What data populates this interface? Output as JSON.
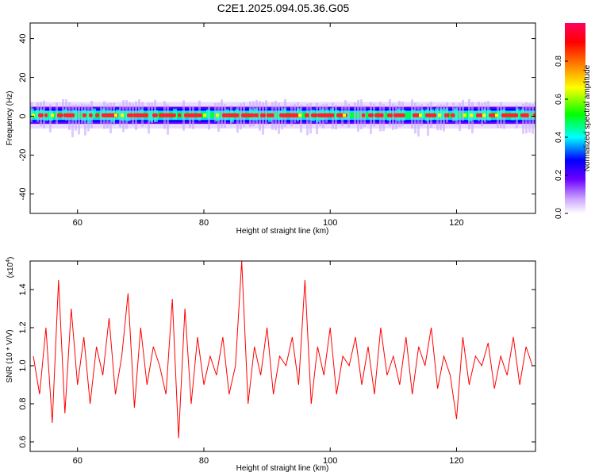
{
  "title": "C2E1.2025.094.05.36.G05",
  "chart_data": [
    {
      "type": "heatmap",
      "xlabel": "Height of straight line (km)",
      "ylabel": "Frequency (Hz)",
      "xlim": [
        52.5,
        132.5
      ],
      "ylim": [
        -50,
        48
      ],
      "xticks": [
        60,
        80,
        100,
        120
      ],
      "yticks": [
        -40,
        -20,
        0,
        20,
        40
      ],
      "band_center_hz": 0.5,
      "band_halfwidth_hz": 4,
      "colorbar": {
        "label": "Normalized spectral amplitude",
        "range": [
          0.0,
          1.0
        ],
        "ticks": [
          0.0,
          0.2,
          0.4,
          0.6,
          0.8
        ],
        "colors": [
          "#ffffff",
          "#c8a0ff",
          "#6a00ff",
          "#0000ff",
          "#00ffff",
          "#00ff00",
          "#ffff00",
          "#ff8000",
          "#ff0000",
          "#ff0060"
        ]
      }
    },
    {
      "type": "line",
      "xlabel": "Height of straight line (km)",
      "ylabel": "SNR (10 * V/V)",
      "multiplier": "(x10",
      "multiplier_exp": "4",
      "xlim": [
        52.5,
        132.5
      ],
      "ylim": [
        0.55,
        1.55
      ],
      "xticks": [
        60,
        80,
        100,
        120
      ],
      "yticks": [
        0.6,
        0.8,
        1.0,
        1.2,
        1.4
      ],
      "color": "#ff0000",
      "series": [
        {
          "x": [
            53,
            54,
            55,
            56,
            57,
            58,
            59,
            60,
            61,
            62,
            63,
            64,
            65,
            66,
            67,
            68,
            69,
            70,
            71,
            72,
            73,
            74,
            75,
            76,
            77,
            78,
            79,
            80,
            81,
            82,
            83,
            84,
            85,
            86,
            87,
            88,
            89,
            90,
            91,
            92,
            93,
            94,
            95,
            96,
            97,
            98,
            99,
            100,
            101,
            102,
            103,
            104,
            105,
            106,
            107,
            108,
            109,
            110,
            111,
            112,
            113,
            114,
            115,
            116,
            117,
            118,
            119,
            120,
            121,
            122,
            123,
            124,
            125,
            126,
            127,
            128,
            129,
            130,
            131,
            132
          ],
          "y": [
            1.05,
            0.85,
            1.2,
            0.7,
            1.45,
            0.75,
            1.3,
            0.9,
            1.15,
            0.8,
            1.1,
            0.95,
            1.25,
            0.85,
            1.05,
            1.38,
            0.78,
            1.2,
            0.9,
            1.1,
            1.0,
            0.85,
            1.35,
            0.62,
            1.3,
            0.8,
            1.15,
            0.9,
            1.05,
            0.95,
            1.15,
            0.85,
            1.0,
            1.55,
            0.8,
            1.1,
            0.95,
            1.2,
            0.85,
            1.05,
            1.0,
            1.15,
            0.9,
            1.45,
            0.8,
            1.1,
            0.95,
            1.2,
            0.85,
            1.05,
            1.0,
            1.15,
            0.9,
            1.1,
            0.85,
            1.2,
            0.95,
            1.05,
            0.9,
            1.15,
            0.85,
            1.1,
            1.0,
            1.2,
            0.88,
            1.05,
            0.95,
            0.72,
            1.15,
            0.9,
            1.05,
            1.0,
            1.12,
            0.88,
            1.05,
            0.95,
            1.15,
            0.9,
            1.1,
            1.0
          ]
        }
      ]
    }
  ]
}
